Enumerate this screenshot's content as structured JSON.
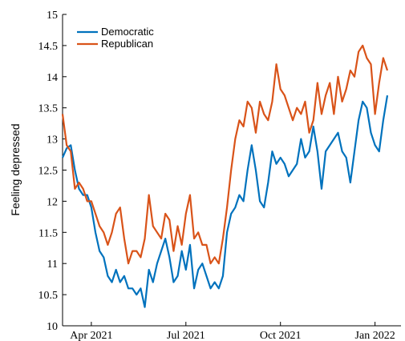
{
  "chart_data": {
    "type": "line",
    "y_label": "Feeling depressed",
    "categories": [
      null,
      null,
      null,
      null,
      null,
      null,
      null,
      "Apr 2021",
      null,
      null,
      null,
      null,
      null,
      null,
      null,
      null,
      null,
      null,
      null,
      null,
      null,
      null,
      null,
      null,
      null,
      null,
      null,
      null,
      null,
      null,
      "Jul 2021",
      null,
      null,
      null,
      null,
      null,
      null,
      null,
      null,
      null,
      null,
      null,
      null,
      null,
      null,
      null,
      null,
      null,
      null,
      null,
      null,
      null,
      null,
      "Oct 2021",
      null,
      null,
      null,
      null,
      null,
      null,
      null,
      null,
      null,
      null,
      null,
      null,
      null,
      null,
      null,
      null,
      null,
      null,
      null,
      null,
      null,
      null,
      "Jan 2022",
      null,
      null,
      null
    ],
    "series": [
      {
        "name": "Democratic",
        "color": "#0072bd",
        "values": [
          12.7,
          12.85,
          12.9,
          12.5,
          12.2,
          12.1,
          12.1,
          11.9,
          11.5,
          11.2,
          11.1,
          10.8,
          10.7,
          10.9,
          10.7,
          10.8,
          10.6,
          10.6,
          10.5,
          10.6,
          10.3,
          10.9,
          10.7,
          11.0,
          11.2,
          11.4,
          11.1,
          10.7,
          10.8,
          11.2,
          10.9,
          11.3,
          10.6,
          10.9,
          11.0,
          10.8,
          10.6,
          10.7,
          10.6,
          10.8,
          11.5,
          11.8,
          11.9,
          12.1,
          12.0,
          12.5,
          12.9,
          12.5,
          12.0,
          11.9,
          12.3,
          12.8,
          12.6,
          12.7,
          12.6,
          12.4,
          12.5,
          12.6,
          13.0,
          12.7,
          12.8,
          13.2,
          12.8,
          12.2,
          12.8,
          12.9,
          13.0,
          13.1,
          12.8,
          12.7,
          12.3,
          12.8,
          13.3,
          13.6,
          13.5,
          13.1,
          12.9,
          12.8,
          13.3,
          13.7
        ]
      },
      {
        "name": "Republican",
        "color": "#d95319",
        "values": [
          13.4,
          12.9,
          12.8,
          12.2,
          12.3,
          12.2,
          12.0,
          12.0,
          11.8,
          11.6,
          11.5,
          11.3,
          11.5,
          11.8,
          11.9,
          11.4,
          11.0,
          11.2,
          11.2,
          11.1,
          11.4,
          12.1,
          11.6,
          11.5,
          11.4,
          11.8,
          11.7,
          11.2,
          11.6,
          11.3,
          11.8,
          12.1,
          11.4,
          11.5,
          11.3,
          11.3,
          11.0,
          11.1,
          11.0,
          11.4,
          11.9,
          12.5,
          13.0,
          13.3,
          13.2,
          13.6,
          13.5,
          13.1,
          13.6,
          13.4,
          13.3,
          13.6,
          14.2,
          13.8,
          13.7,
          13.5,
          13.3,
          13.5,
          13.4,
          13.6,
          13.1,
          13.3,
          13.9,
          13.4,
          13.7,
          13.9,
          13.4,
          14.0,
          13.6,
          13.8,
          14.1,
          14.0,
          14.4,
          14.5,
          14.3,
          14.2,
          13.4,
          13.9,
          14.3,
          14.1
        ]
      }
    ],
    "ylim": [
      10,
      15
    ],
    "yticks": [
      10,
      10.5,
      11,
      11.5,
      12,
      12.5,
      13,
      13.5,
      14,
      14.5,
      15
    ],
    "legend": "upper left"
  }
}
